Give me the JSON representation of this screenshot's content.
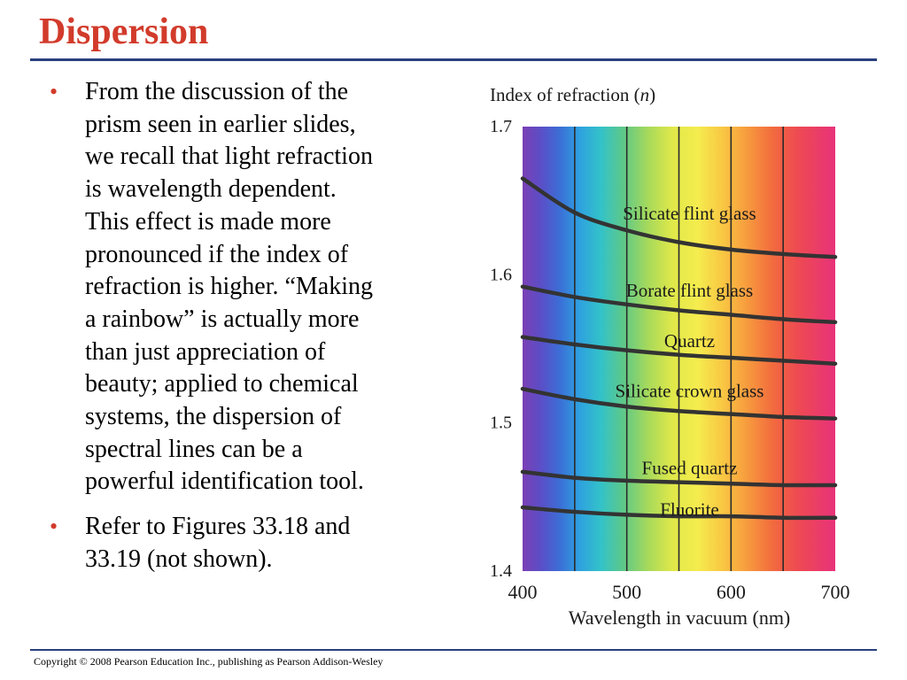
{
  "slide": {
    "title": "Dispersion",
    "bullets": [
      {
        "lines": [
          "From the discussion of the",
          "prism seen in earlier slides,",
          "we recall that light refraction",
          "is wavelength dependent.",
          "This effect is made more",
          "pronounced if the index of",
          "refraction is higher. “Making",
          "a rainbow” is actually more",
          "than just appreciation of",
          "beauty; applied to chemical",
          "systems, the dispersion of",
          "spectral lines can be a",
          "powerful identification tool."
        ]
      },
      {
        "lines": [
          "Refer to Figures 33.18 and",
          "33.19 (not shown)."
        ]
      }
    ],
    "copyright": "Copyright © 2008 Pearson Education Inc., publishing as Pearson Addison-Wesley",
    "colors": {
      "title": "#d23b2b",
      "rule": "#2a3f7e",
      "bullet": "#d23b2b"
    }
  },
  "chart_data": {
    "type": "line",
    "ylabel_prefix": "Index of refraction (",
    "ylabel_var": "n",
    "ylabel_suffix": ")",
    "xlabel": "Wavelength in vacuum (nm)",
    "xlim": [
      400,
      700
    ],
    "ylim": [
      1.4,
      1.7
    ],
    "xticks": [
      400,
      500,
      600,
      700
    ],
    "xtick_labels": [
      "400",
      "500",
      "600",
      "700"
    ],
    "yticks": [
      1.4,
      1.5,
      1.6,
      1.7
    ],
    "ytick_labels": [
      "1.4",
      "1.5",
      "1.6",
      "1.7"
    ],
    "vertical_gridlines": [
      450,
      500,
      550,
      600,
      650
    ],
    "background": "visible spectrum gradient (violet to red)",
    "series": [
      {
        "name": "Silicate flint glass",
        "x": [
          400,
          450,
          500,
          550,
          600,
          650,
          700
        ],
        "y": [
          1.665,
          1.642,
          1.63,
          1.622,
          1.617,
          1.614,
          1.612
        ],
        "label_pos": [
          550,
          1.6415
        ]
      },
      {
        "name": "Borate flint glass",
        "x": [
          400,
          450,
          500,
          550,
          600,
          650,
          700
        ],
        "y": [
          1.592,
          1.585,
          1.58,
          1.576,
          1.573,
          1.57,
          1.568
        ],
        "label_pos": [
          550,
          1.5895
        ]
      },
      {
        "name": "Quartz",
        "x": [
          400,
          450,
          500,
          550,
          600,
          650,
          700
        ],
        "y": [
          1.558,
          1.553,
          1.549,
          1.546,
          1.544,
          1.542,
          1.54
        ],
        "label_pos": [
          550,
          1.5555
        ]
      },
      {
        "name": "Silicate crown glass",
        "x": [
          400,
          450,
          500,
          550,
          600,
          650,
          700
        ],
        "y": [
          1.523,
          1.516,
          1.511,
          1.508,
          1.506,
          1.504,
          1.503
        ],
        "label_pos": [
          550,
          1.5215
        ]
      },
      {
        "name": "Fused quartz",
        "x": [
          400,
          450,
          500,
          550,
          600,
          650,
          700
        ],
        "y": [
          1.467,
          1.463,
          1.461,
          1.46,
          1.459,
          1.458,
          1.458
        ],
        "label_pos": [
          550,
          1.4695
        ]
      },
      {
        "name": "Fluorite",
        "x": [
          400,
          450,
          500,
          550,
          600,
          650,
          700
        ],
        "y": [
          1.443,
          1.44,
          1.438,
          1.437,
          1.437,
          1.436,
          1.436
        ],
        "label_pos": [
          550,
          1.4415
        ]
      }
    ],
    "curve_color": "#333333"
  }
}
